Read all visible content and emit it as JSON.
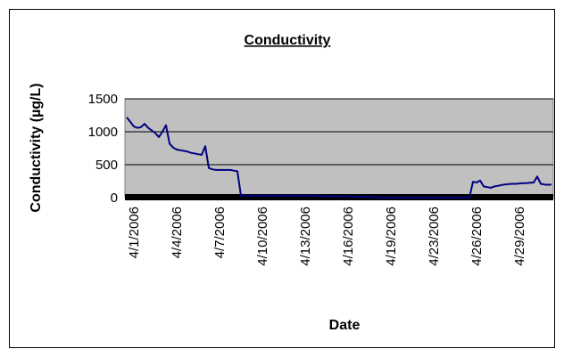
{
  "chart_data": {
    "type": "line",
    "title": "Conductivity",
    "y_label": "Conductivity (µg/L)",
    "x_label": "Date",
    "categories": [
      null,
      null,
      "4/1/2006",
      null,
      null,
      null,
      null,
      null,
      null,
      null,
      null,
      null,
      null,
      null,
      "4/4/2006",
      null,
      null,
      null,
      null,
      null,
      null,
      null,
      null,
      null,
      null,
      null,
      "4/7/2006",
      null,
      null,
      null,
      null,
      null,
      null,
      null,
      null,
      null,
      null,
      null,
      "4/10/2006",
      null,
      null,
      null,
      null,
      null,
      null,
      null,
      null,
      null,
      null,
      null,
      "4/13/2006",
      null,
      null,
      null,
      null,
      null,
      null,
      null,
      null,
      null,
      null,
      null,
      "4/16/2006",
      null,
      null,
      null,
      null,
      null,
      null,
      null,
      null,
      null,
      null,
      null,
      "4/19/2006",
      null,
      null,
      null,
      null,
      null,
      null,
      null,
      null,
      null,
      null,
      null,
      "4/23/2006",
      null,
      null,
      null,
      null,
      null,
      null,
      null,
      null,
      null,
      null,
      null,
      "4/26/2006",
      null,
      null,
      null,
      null,
      null,
      null,
      null,
      null,
      null,
      null,
      null,
      "4/29/2006",
      null,
      null,
      null,
      null,
      null,
      null,
      null,
      null,
      null
    ],
    "series": [
      {
        "color": "#000080",
        "values": [
          1220,
          1150,
          1080,
          1060,
          1070,
          1120,
          1060,
          1020,
          980,
          920,
          1000,
          1100,
          820,
          760,
          730,
          720,
          710,
          700,
          680,
          670,
          660,
          650,
          780,
          450,
          430,
          420,
          420,
          420,
          420,
          420,
          410,
          400,
          30,
          30,
          30,
          30,
          30,
          30,
          30,
          30,
          30,
          30,
          30,
          30,
          30,
          30,
          30,
          35,
          30,
          30,
          30,
          35,
          30,
          30,
          25,
          25,
          25,
          20,
          20,
          20,
          20,
          20,
          15,
          15,
          15,
          15,
          15,
          10,
          10,
          10,
          0,
          0,
          0,
          0,
          0,
          0,
          0,
          0,
          0,
          0,
          0,
          0,
          0,
          0,
          0,
          0,
          0,
          0,
          0,
          0,
          0,
          0,
          0,
          0,
          0,
          0,
          0,
          240,
          230,
          260,
          170,
          160,
          150,
          170,
          180,
          190,
          200,
          205,
          210,
          210,
          215,
          220,
          220,
          225,
          230,
          320,
          210,
          200,
          195,
          200
        ]
      }
    ],
    "ylim": [
      0,
      1500
    ],
    "yticks": [
      0,
      500,
      1000,
      1500
    ],
    "grid": true
  }
}
